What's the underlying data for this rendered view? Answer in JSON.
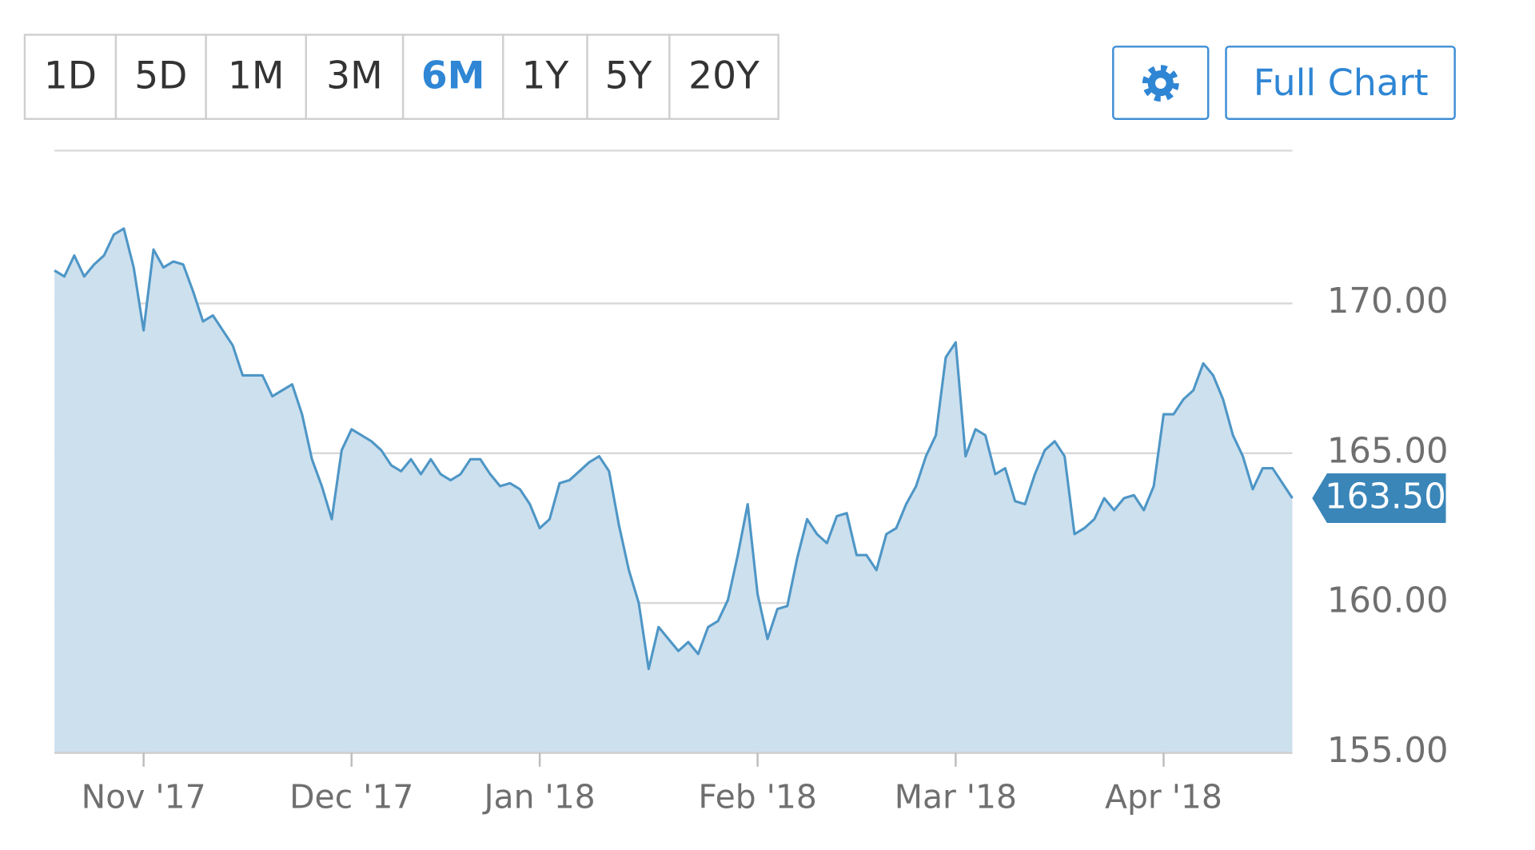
{
  "range_buttons": [
    "1D",
    "5D",
    "1M",
    "3M",
    "6M",
    "1Y",
    "5Y",
    "20Y"
  ],
  "selected_range": "6M",
  "full_chart_button": "Full Chart",
  "chart_data": {
    "type": "area",
    "categories": [
      null,
      null,
      null,
      null,
      null,
      null,
      null,
      null,
      null,
      "Nov '17",
      null,
      null,
      null,
      null,
      null,
      null,
      null,
      null,
      null,
      null,
      null,
      null,
      null,
      null,
      null,
      null,
      null,
      null,
      null,
      null,
      "Dec '17",
      null,
      null,
      null,
      null,
      null,
      null,
      null,
      null,
      null,
      null,
      null,
      null,
      null,
      null,
      null,
      null,
      null,
      null,
      "Jan '18",
      null,
      null,
      null,
      null,
      null,
      null,
      null,
      null,
      null,
      null,
      null,
      null,
      null,
      null,
      null,
      null,
      null,
      null,
      null,
      null,
      null,
      "Feb '18",
      null,
      null,
      null,
      null,
      null,
      null,
      null,
      null,
      null,
      null,
      null,
      null,
      null,
      null,
      null,
      null,
      null,
      null,
      null,
      "Mar '18",
      null,
      null,
      null,
      null,
      null,
      null,
      null,
      null,
      null,
      null,
      null,
      null,
      null,
      null,
      null,
      null,
      null,
      null,
      null,
      null,
      "Apr '18",
      null,
      null,
      null,
      null,
      null,
      null,
      null,
      null,
      null,
      null,
      null,
      null,
      null
    ],
    "values": [
      171.1,
      170.9,
      171.6,
      170.9,
      171.3,
      171.6,
      172.3,
      172.5,
      171.2,
      169.1,
      171.8,
      171.2,
      171.4,
      171.3,
      170.4,
      169.4,
      169.6,
      169.1,
      168.6,
      167.6,
      167.6,
      167.6,
      166.9,
      167.1,
      167.3,
      166.3,
      164.8,
      163.9,
      162.8,
      165.1,
      165.8,
      165.6,
      165.4,
      165.1,
      164.6,
      164.4,
      164.8,
      164.3,
      164.8,
      164.3,
      164.1,
      164.3,
      164.8,
      164.8,
      164.3,
      163.9,
      164.0,
      163.8,
      163.3,
      162.5,
      162.8,
      164.0,
      164.1,
      164.4,
      164.7,
      164.9,
      164.4,
      162.6,
      161.1,
      160.0,
      157.8,
      159.2,
      158.8,
      158.4,
      158.7,
      158.3,
      159.2,
      159.4,
      160.1,
      161.6,
      163.3,
      160.3,
      158.8,
      159.8,
      159.9,
      161.5,
      162.8,
      162.3,
      162.0,
      162.9,
      163.0,
      161.6,
      161.6,
      161.1,
      162.3,
      162.5,
      163.3,
      163.9,
      164.9,
      165.6,
      168.2,
      168.7,
      164.9,
      165.8,
      165.6,
      164.3,
      164.5,
      163.4,
      163.3,
      164.3,
      165.1,
      165.4,
      164.9,
      162.3,
      162.5,
      162.8,
      163.5,
      163.1,
      163.5,
      163.6,
      163.1,
      163.9,
      166.3,
      166.3,
      166.8,
      167.1,
      168.0,
      167.6,
      166.8,
      165.6,
      164.9,
      163.8,
      164.5,
      164.5,
      164.0,
      163.5
    ],
    "last_value_label": "163.50",
    "color": "#4e96c6",
    "fill_color": "#cde0ee",
    "tag_color": "#3a86b9",
    "ylim": [
      155,
      175.1
    ],
    "yticks": [
      {
        "value": 155,
        "label": "155.00"
      },
      {
        "value": 160,
        "label": "160.00"
      },
      {
        "value": 165,
        "label": "165.00"
      },
      {
        "value": 170,
        "label": "170.00"
      }
    ],
    "grid": true
  }
}
